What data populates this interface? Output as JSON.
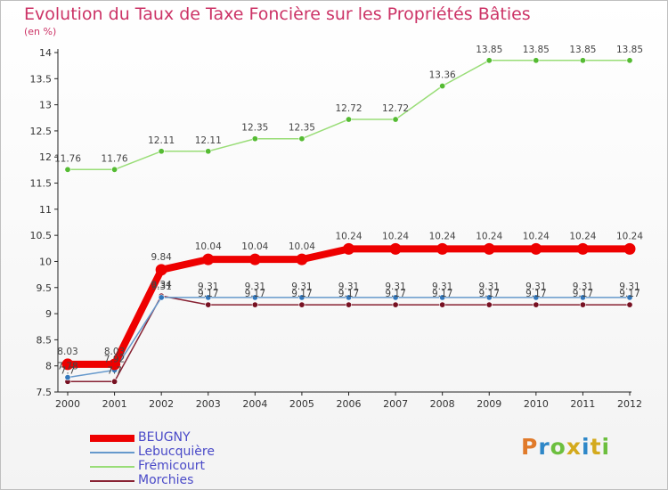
{
  "title": "Evolution du Taux de Taxe Foncière sur les Propriétés Bâties",
  "unit_label": "(en %)",
  "brand": {
    "text": "Proxiti"
  },
  "chart_data": {
    "type": "line",
    "x": [
      "2000",
      "2001",
      "2002",
      "2003",
      "2004",
      "2005",
      "2006",
      "2007",
      "2008",
      "2009",
      "2010",
      "2011",
      "2012"
    ],
    "ylim": [
      7.5,
      14
    ],
    "yticks": [
      "7.5",
      "8",
      "8.5",
      "9",
      "9.5",
      "10",
      "10.5",
      "11",
      "11.5",
      "12",
      "12.5",
      "13",
      "13.5",
      "14"
    ],
    "grid": false,
    "legend_position": "bottom-left",
    "series": [
      {
        "name": "Frémicourt",
        "color": "#99dd77",
        "marker": "#55bb33",
        "width": 1.5,
        "values": [
          11.76,
          11.76,
          12.11,
          12.11,
          12.35,
          12.35,
          12.72,
          12.72,
          13.36,
          13.85,
          13.85,
          13.85,
          13.85
        ],
        "labels": [
          "11.76",
          "11.76",
          "12.11",
          "12.11",
          "12.35",
          "12.35",
          "12.72",
          "12.72",
          "13.36",
          "13.85",
          "13.85",
          "13.85",
          "13.85"
        ]
      },
      {
        "name": "Morchies",
        "color": "#882233",
        "marker": "#771122",
        "width": 1.5,
        "values": [
          7.7,
          7.7,
          9.34,
          9.17,
          9.17,
          9.17,
          9.17,
          9.17,
          9.17,
          9.17,
          9.17,
          9.17,
          9.17
        ],
        "labels": [
          "7.7",
          "7.7",
          "9.34",
          "9.17",
          "9.17",
          "9.17",
          "9.17",
          "9.17",
          "9.17",
          "9.17",
          "9.17",
          "9.17",
          "9.17"
        ]
      },
      {
        "name": "Lebucquière",
        "color": "#6699cc",
        "marker": "#3377bb",
        "width": 1.5,
        "values": [
          7.78,
          7.92,
          9.31,
          9.31,
          9.31,
          9.31,
          9.31,
          9.31,
          9.31,
          9.31,
          9.31,
          9.31,
          9.31
        ],
        "labels": [
          "7.78",
          "7.92",
          "9.31",
          "9.31",
          "9.31",
          "9.31",
          "9.31",
          "9.31",
          "9.31",
          "9.31",
          "9.31",
          "9.31",
          "9.31"
        ]
      },
      {
        "name": "BEUGNY",
        "color": "#ee0000",
        "marker": "#ee0000",
        "width": 8,
        "values": [
          8.03,
          8.03,
          9.84,
          10.04,
          10.04,
          10.04,
          10.24,
          10.24,
          10.24,
          10.24,
          10.24,
          10.24,
          10.24
        ],
        "labels": [
          "8.03",
          "8.03",
          "9.84",
          "10.04",
          "10.04",
          "10.04",
          "10.24",
          "10.24",
          "10.24",
          "10.24",
          "10.24",
          "10.24",
          "10.24"
        ]
      }
    ],
    "legend": [
      {
        "name": "BEUGNY",
        "color": "#ee0000",
        "width": 8
      },
      {
        "name": "Lebucquière",
        "color": "#6699cc",
        "width": 2
      },
      {
        "name": "Frémicourt",
        "color": "#99dd77",
        "width": 2
      },
      {
        "name": "Morchies",
        "color": "#882233",
        "width": 2
      }
    ]
  }
}
